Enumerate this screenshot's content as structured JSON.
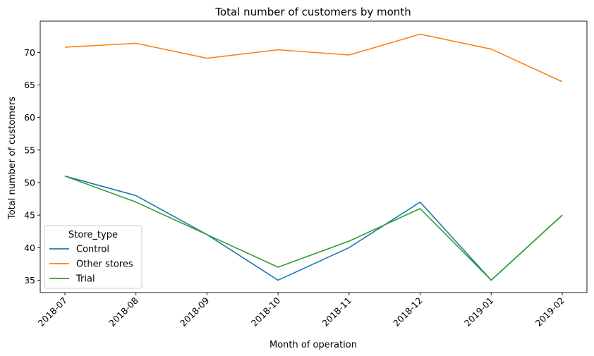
{
  "chart_data": {
    "type": "line",
    "title": "Total number of customers by month",
    "xlabel": "Month of operation",
    "ylabel": "Total number of customers",
    "categories": [
      "2018-07",
      "2018-08",
      "2018-09",
      "2018-10",
      "2018-11",
      "2018-12",
      "2019-01",
      "2019-02"
    ],
    "ylim": [
      33.1,
      74.8
    ],
    "yticks": [
      35,
      40,
      45,
      50,
      55,
      60,
      65,
      70
    ],
    "grid": false,
    "legend": {
      "title": "Store_type",
      "position": "lower-left"
    },
    "series": [
      {
        "name": "Control",
        "color": "#1f77b4",
        "values": [
          51,
          48,
          42,
          35,
          40,
          47,
          35,
          45
        ]
      },
      {
        "name": "Other stores",
        "color": "#ff7f0e",
        "values": [
          70.8,
          71.4,
          69.1,
          70.4,
          69.6,
          72.8,
          70.5,
          65.5
        ]
      },
      {
        "name": "Trial",
        "color": "#2ca02c",
        "values": [
          51,
          47,
          42,
          37,
          41,
          46,
          35,
          45
        ]
      }
    ]
  }
}
